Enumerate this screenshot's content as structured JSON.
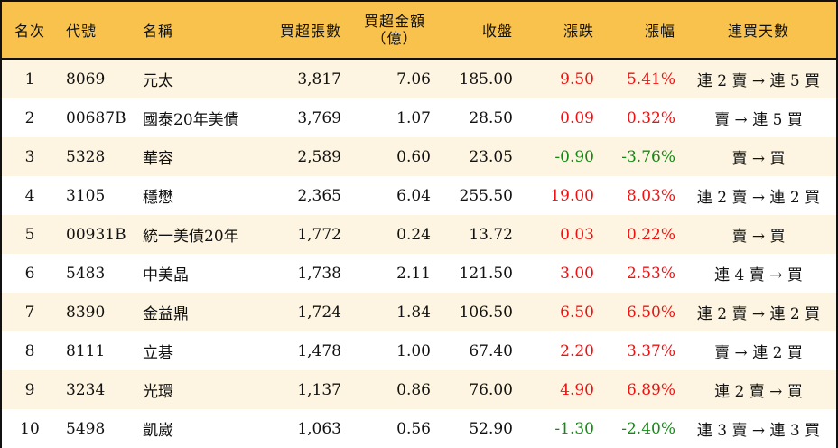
{
  "headers": [
    "名次",
    "代號",
    "名稱",
    "買超張數",
    "買超金額",
    "（億）",
    "收盤",
    "漲跌",
    "漲幅",
    "連買天數"
  ],
  "colors": {
    "header_bg": "#f8c24d",
    "row_alt_bg": "#fdf5e1",
    "up": "#ee1111",
    "down": "#138a13"
  },
  "rows": [
    {
      "rank": "1",
      "code": "8069",
      "name": "元太",
      "volume": "3,817",
      "amount": "7.06",
      "close": "185.00",
      "change": "9.50",
      "pct": "5.41%",
      "dir": "up",
      "days": "連 2 賣 → 連 5 買"
    },
    {
      "rank": "2",
      "code": "00687B",
      "name": "國泰20年美債",
      "volume": "3,769",
      "amount": "1.07",
      "close": "28.50",
      "change": "0.09",
      "pct": "0.32%",
      "dir": "up",
      "days": "賣 → 連 5 買"
    },
    {
      "rank": "3",
      "code": "5328",
      "name": "華容",
      "volume": "2,589",
      "amount": "0.60",
      "close": "23.05",
      "change": "-0.90",
      "pct": "-3.76%",
      "dir": "down",
      "days": "賣 → 買"
    },
    {
      "rank": "4",
      "code": "3105",
      "name": "穩懋",
      "volume": "2,365",
      "amount": "6.04",
      "close": "255.50",
      "change": "19.00",
      "pct": "8.03%",
      "dir": "up",
      "days": "連 2 賣 → 連 2 買"
    },
    {
      "rank": "5",
      "code": "00931B",
      "name": "統一美債20年",
      "volume": "1,772",
      "amount": "0.24",
      "close": "13.72",
      "change": "0.03",
      "pct": "0.22%",
      "dir": "up",
      "days": "賣 → 買"
    },
    {
      "rank": "6",
      "code": "5483",
      "name": "中美晶",
      "volume": "1,738",
      "amount": "2.11",
      "close": "121.50",
      "change": "3.00",
      "pct": "2.53%",
      "dir": "up",
      "days": "連 4 賣 → 買"
    },
    {
      "rank": "7",
      "code": "8390",
      "name": "金益鼎",
      "volume": "1,724",
      "amount": "1.84",
      "close": "106.50",
      "change": "6.50",
      "pct": "6.50%",
      "dir": "up",
      "days": "連 2 賣 → 連 2 買"
    },
    {
      "rank": "8",
      "code": "8111",
      "name": "立碁",
      "volume": "1,478",
      "amount": "1.00",
      "close": "67.40",
      "change": "2.20",
      "pct": "3.37%",
      "dir": "up",
      "days": "賣 → 連 2 買"
    },
    {
      "rank": "9",
      "code": "3234",
      "name": "光環",
      "volume": "1,137",
      "amount": "0.86",
      "close": "76.00",
      "change": "4.90",
      "pct": "6.89%",
      "dir": "up",
      "days": "連 2 賣 → 買"
    },
    {
      "rank": "10",
      "code": "5498",
      "name": "凱崴",
      "volume": "1,063",
      "amount": "0.56",
      "close": "52.90",
      "change": "-1.30",
      "pct": "-2.40%",
      "dir": "down",
      "days": "連 3 賣 → 連 3 買"
    }
  ]
}
